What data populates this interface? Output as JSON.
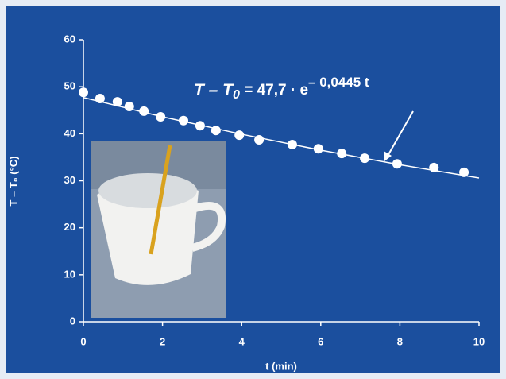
{
  "chart_data": {
    "type": "scatter",
    "xlabel": "t (min)",
    "ylabel": "T – T₀ (°C)",
    "xlim": [
      0,
      10
    ],
    "xticks": [
      0,
      2,
      4,
      6,
      8,
      10
    ],
    "ylim": [
      0,
      60
    ],
    "yticks": [
      0,
      10,
      20,
      30,
      40,
      50,
      60
    ],
    "grid": false,
    "color": "#ffffff",
    "x": [
      0,
      0.42,
      0.86,
      1.16,
      1.53,
      1.95,
      2.53,
      2.95,
      3.35,
      3.94,
      4.44,
      5.28,
      5.94,
      6.53,
      7.11,
      7.93,
      8.86,
      9.62
    ],
    "values": [
      48.8,
      47.5,
      46.8,
      45.8,
      44.8,
      43.6,
      42.8,
      41.7,
      40.7,
      39.7,
      38.7,
      37.7,
      36.8,
      35.8,
      34.8,
      33.6,
      32.8,
      31.8
    ],
    "fit_line": {
      "x": [
        0,
        2,
        4,
        6,
        8,
        10
      ],
      "values": [
        47.7,
        43.6,
        39.9,
        36.5,
        33.4,
        30.6
      ]
    },
    "annotation": {
      "lhs": "T – T",
      "lhs_sub": "0",
      "rhs": " = 47,7 · e",
      "exponent": "– 0,0445 t"
    }
  }
}
